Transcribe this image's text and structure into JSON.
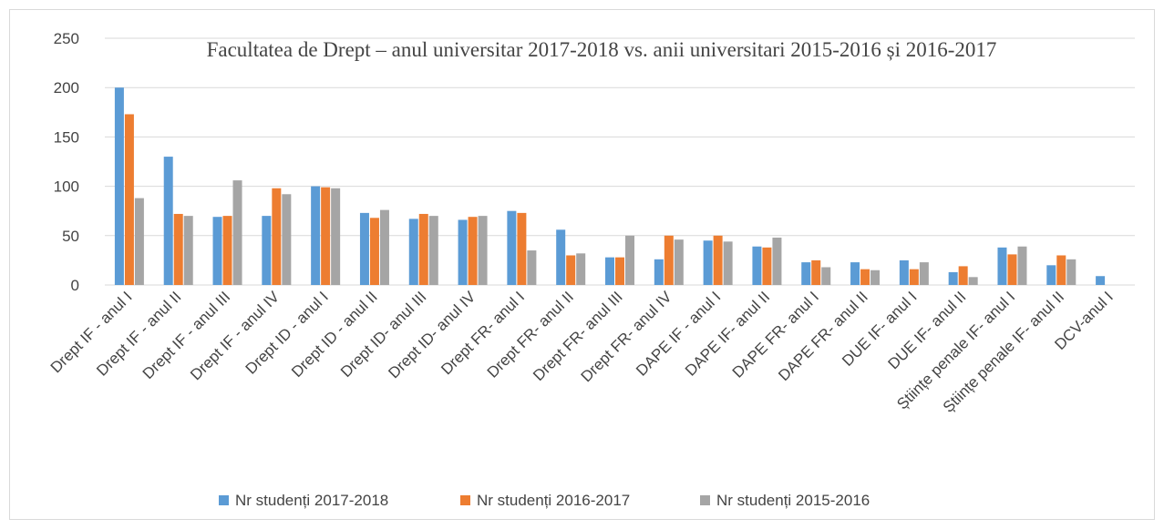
{
  "chart_data": {
    "type": "bar",
    "title": "Facultatea de Drept – anul universitar 2017-2018 vs. anii universitari 2015-2016 și 2016-2017",
    "categories": [
      "Drept IF - anul I",
      "Drept IF - anul II",
      "Drept IF - anul III",
      "Drept IF - anul IV",
      "Drept ID - anul I",
      "Drept ID - anul II",
      "Drept ID- anul III",
      "Drept ID- anul IV",
      "Drept FR- anul I",
      "Drept FR- anul II",
      "Drept FR- anul III",
      "Drept FR- anul IV",
      "DAPE IF - anul I",
      "DAPE  IF- anul II",
      "DAPE FR- anul I",
      "DAPE FR- anul II",
      "DUE IF- anul I",
      "DUE IF- anul II",
      "Științe penale IF- anul I",
      "Științe penale IF- anul II",
      "DCV-anul I"
    ],
    "series": [
      {
        "name": "Nr studenți  2017-2018",
        "color": "#5b9bd5",
        "values": [
          200,
          130,
          69,
          70,
          100,
          73,
          67,
          66,
          75,
          56,
          28,
          26,
          45,
          39,
          23,
          23,
          25,
          13,
          38,
          20,
          9
        ]
      },
      {
        "name": "Nr studenți  2016-2017",
        "color": "#ed7d31",
        "values": [
          173,
          72,
          70,
          98,
          99,
          68,
          72,
          69,
          73,
          30,
          28,
          50,
          50,
          38,
          25,
          16,
          16,
          19,
          31,
          30,
          null
        ]
      },
      {
        "name": "Nr studenți 2015-2016",
        "color": "#a5a5a5",
        "values": [
          88,
          70,
          106,
          92,
          98,
          76,
          70,
          70,
          35,
          32,
          50,
          46,
          44,
          48,
          18,
          15,
          23,
          8,
          39,
          26,
          null
        ]
      }
    ],
    "ylim": [
      0,
      250
    ],
    "yticks": [
      0,
      50,
      100,
      150,
      200,
      250
    ],
    "grid": true,
    "legend": "bottom"
  }
}
